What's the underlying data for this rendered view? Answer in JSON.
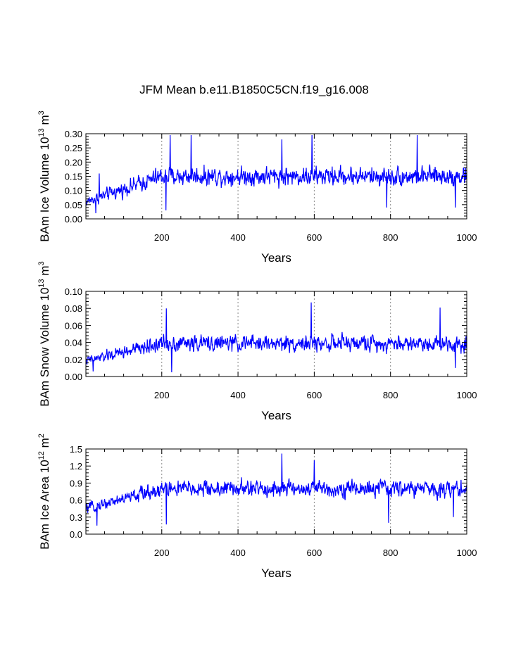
{
  "figure": {
    "title": "JFM Mean b.e11.B1850C5CN.f19_g16.008"
  },
  "chart_data": [
    {
      "type": "line",
      "id": "ice-volume",
      "ylabel_main": "BAm Ice Volume 10",
      "ylabel_exp": "13",
      "ylabel_unit": " m",
      "ylabel_unit_exp": "3",
      "xlabel": "Years",
      "xlim": [
        1,
        1000
      ],
      "ylim": [
        0,
        0.3
      ],
      "yticks": [
        "0.00",
        "0.05",
        "0.10",
        "0.15",
        "0.20",
        "0.25",
        "0.30"
      ],
      "xticks": [
        "200",
        "400",
        "600",
        "800",
        "1000"
      ],
      "gridlines_x": [
        200,
        400,
        600,
        800
      ],
      "color": "#0000ff",
      "series_description": "Annual JFM mean values, years 1-1000",
      "trend": {
        "start": 0.06,
        "ramp_end_year": 200,
        "plateau": 0.15,
        "noise": 0.045,
        "min": 0.02,
        "max": 0.295
      },
      "extremes": [
        [
          27,
          0.02
        ],
        [
          36,
          0.16
        ],
        [
          222,
          0.295
        ],
        [
          277,
          0.295
        ],
        [
          211,
          0.03
        ],
        [
          594,
          0.295
        ],
        [
          870,
          0.295
        ],
        [
          515,
          0.28
        ],
        [
          790,
          0.04
        ],
        [
          970,
          0.04
        ]
      ]
    },
    {
      "type": "line",
      "id": "snow-volume",
      "ylabel_main": "BAm Snow Volume 10",
      "ylabel_exp": "13",
      "ylabel_unit": " m",
      "ylabel_unit_exp": "3",
      "xlabel": "Years",
      "xlim": [
        1,
        1000
      ],
      "ylim": [
        0,
        0.1
      ],
      "yticks": [
        "0.00",
        "0.02",
        "0.04",
        "0.06",
        "0.08",
        "0.10"
      ],
      "xticks": [
        "200",
        "400",
        "600",
        "800",
        "1000"
      ],
      "gridlines_x": [
        200,
        400,
        600,
        800
      ],
      "color": "#0000ff",
      "series_description": "Annual JFM mean values, years 1-1000",
      "trend": {
        "start": 0.018,
        "ramp_end_year": 200,
        "plateau": 0.039,
        "noise": 0.013,
        "min": 0.005,
        "max": 0.087
      },
      "extremes": [
        [
          20,
          0.006
        ],
        [
          212,
          0.08
        ],
        [
          592,
          0.087
        ],
        [
          930,
          0.081
        ],
        [
          226,
          0.005
        ],
        [
          970,
          0.01
        ]
      ]
    },
    {
      "type": "line",
      "id": "ice-area",
      "ylabel_main": "BAm Ice Area 10",
      "ylabel_exp": "12",
      "ylabel_unit": " m",
      "ylabel_unit_exp": "2",
      "xlabel": "Years",
      "xlim": [
        1,
        1000
      ],
      "ylim": [
        0,
        1.5
      ],
      "yticks": [
        "0.0",
        "0.3",
        "0.6",
        "0.9",
        "1.2",
        "1.5"
      ],
      "xticks": [
        "200",
        "400",
        "600",
        "800",
        "1000"
      ],
      "gridlines_x": [
        200,
        400,
        600,
        800
      ],
      "color": "#0000ff",
      "series_description": "Annual JFM mean values, years 1-1000",
      "trend": {
        "start": 0.45,
        "ramp_end_year": 200,
        "plateau": 0.8,
        "noise": 0.2,
        "min": 0.15,
        "max": 1.42
      },
      "extremes": [
        [
          30,
          0.15
        ],
        [
          212,
          0.17
        ],
        [
          515,
          1.42
        ],
        [
          795,
          0.2
        ],
        [
          600,
          1.3
        ],
        [
          965,
          0.3
        ]
      ]
    }
  ]
}
